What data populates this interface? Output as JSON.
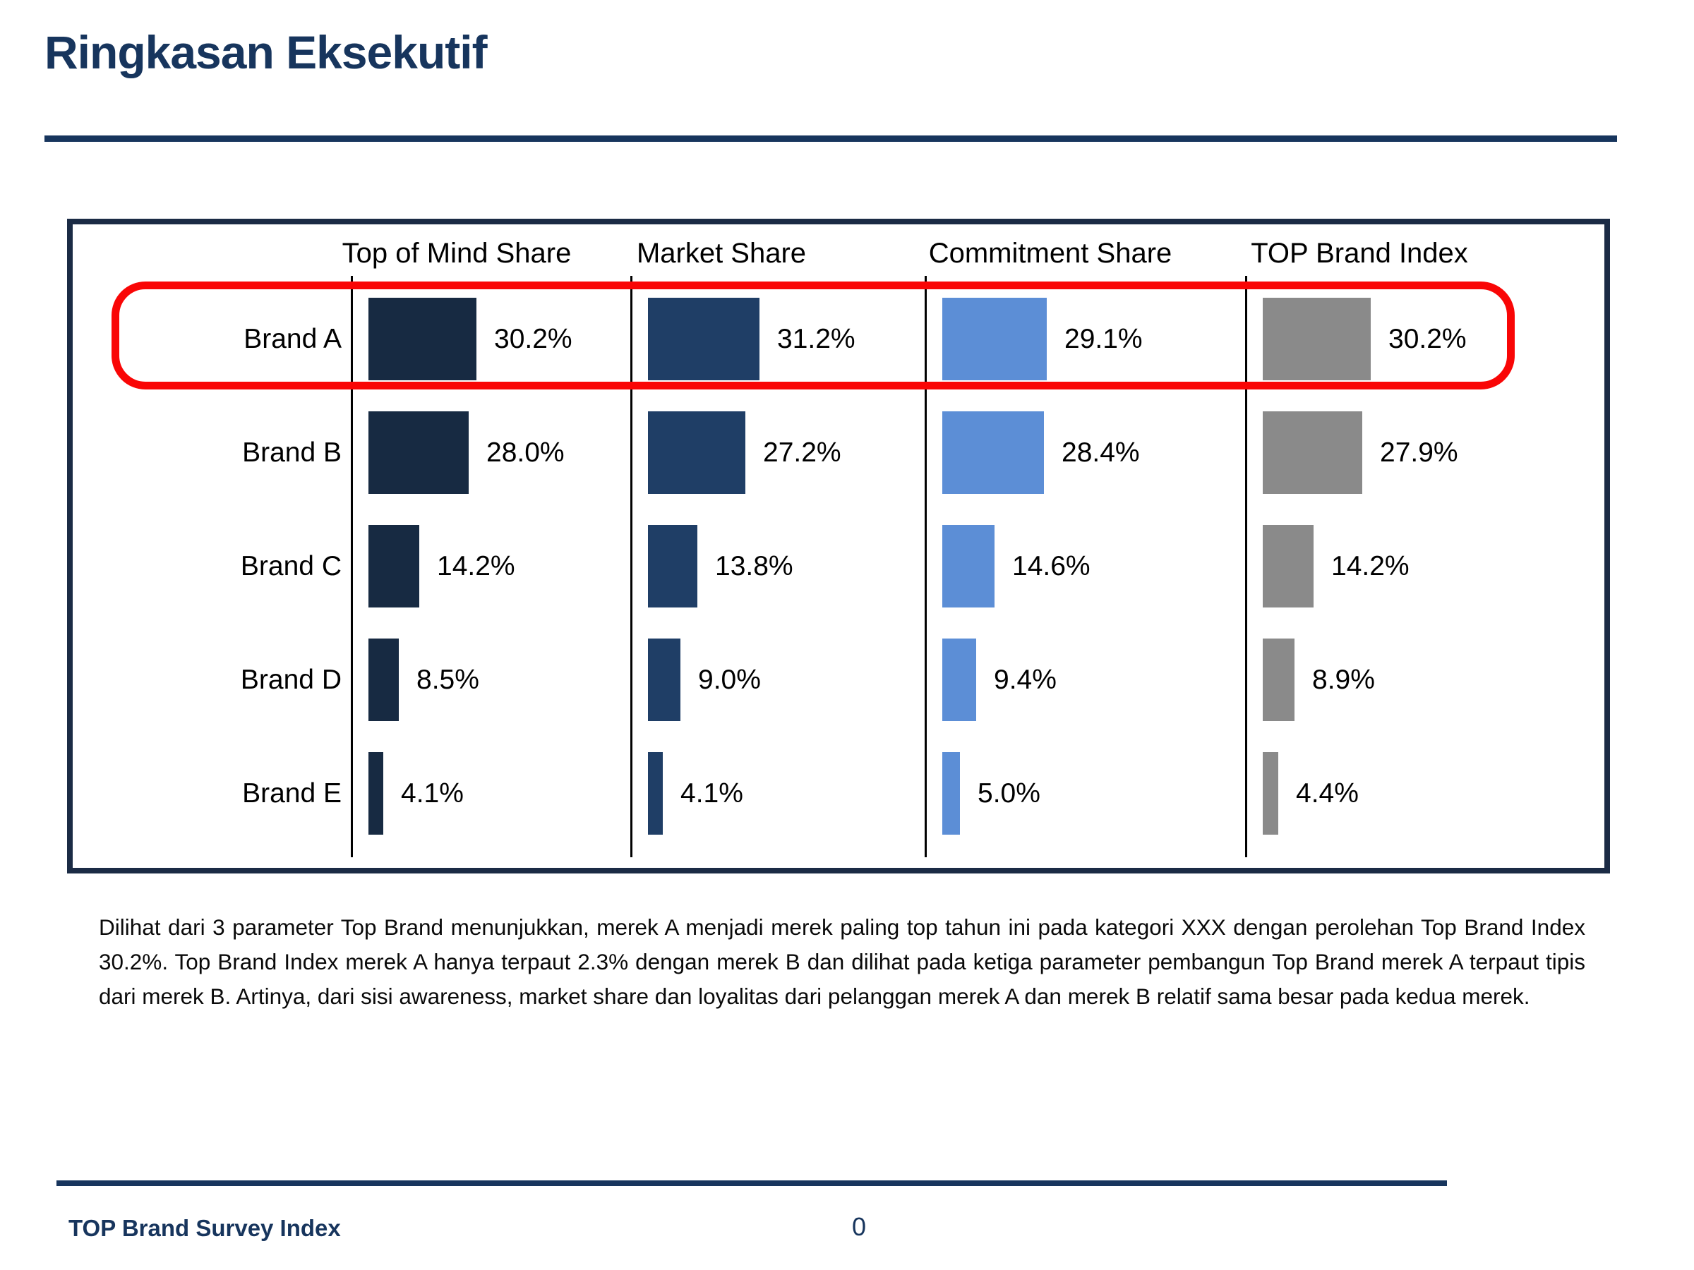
{
  "slide": {
    "title": "Ringkasan Eksekutif",
    "commentary": "Dilihat dari 3 parameter Top Brand menunjukkan, merek A menjadi merek paling top tahun ini pada kategori XXX dengan perolehan Top Brand Index 30.2%. Top Brand Index merek A hanya terpaut 2.3% dengan merek B dan dilihat pada ketiga parameter pembangun Top Brand merek A terpaut tipis dari merek B. Artinya, dari sisi awareness, market share dan loyalitas dari pelanggan merek A dan merek B relatif sama besar pada kedua merek.",
    "footer_label": "TOP Brand Survey Index",
    "page_number": "0"
  },
  "colors": {
    "navy_accent": "#17355D",
    "chart_box_border": "#1B2B45",
    "highlight_red": "#F90606",
    "axis_black": "#000000",
    "text_black": "#0A0A0A"
  },
  "chart_data": {
    "type": "bar",
    "orientation": "horizontal",
    "title": "",
    "categories": [
      "Brand A",
      "Brand B",
      "Brand C",
      "Brand D",
      "Brand E"
    ],
    "series": [
      {
        "name": "Top of Mind Share",
        "color": "#172A42",
        "values": [
          30.2,
          28.0,
          14.2,
          8.5,
          4.1
        ]
      },
      {
        "name": "Market Share",
        "color": "#1F3E66",
        "values": [
          31.2,
          27.2,
          13.8,
          9.0,
          4.1
        ]
      },
      {
        "name": "Commitment Share",
        "color": "#5C8ED6",
        "values": [
          29.1,
          28.4,
          14.6,
          9.4,
          5.0
        ]
      },
      {
        "name": "TOP Brand Index",
        "color": "#8A8A8A",
        "values": [
          30.2,
          27.9,
          14.2,
          8.9,
          4.4
        ]
      }
    ],
    "value_labels_format": "one_decimal_percent",
    "xlim": [
      0,
      33
    ],
    "grid": false,
    "legend_position": "column-headers",
    "highlighted_category": "Brand A"
  }
}
